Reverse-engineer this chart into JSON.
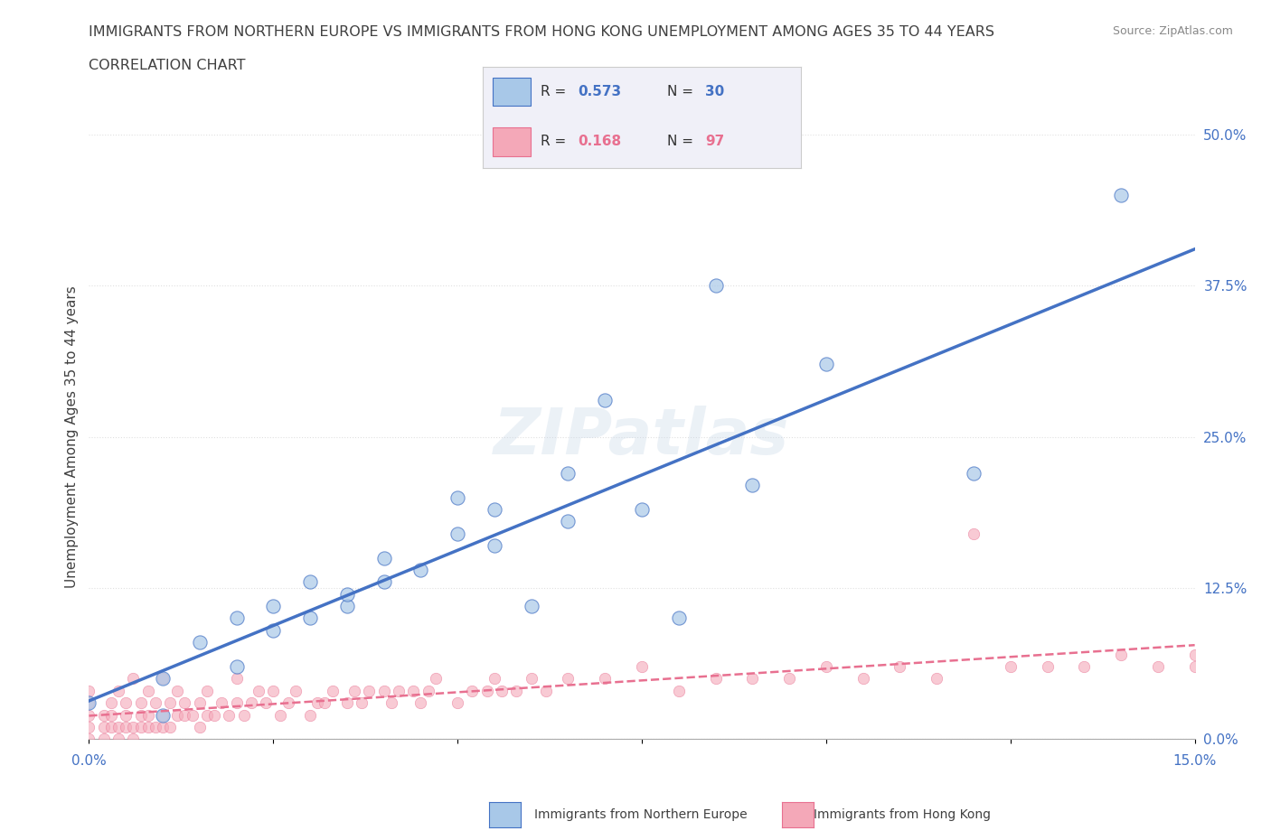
{
  "title_line1": "IMMIGRANTS FROM NORTHERN EUROPE VS IMMIGRANTS FROM HONG KONG UNEMPLOYMENT AMONG AGES 35 TO 44 YEARS",
  "title_line2": "CORRELATION CHART",
  "source_text": "Source: ZipAtlas.com",
  "xlabel": "",
  "ylabel": "Unemployment Among Ages 35 to 44 years",
  "xlim": [
    0.0,
    0.15
  ],
  "ylim": [
    0.0,
    0.5
  ],
  "xticks": [
    0.0,
    0.025,
    0.05,
    0.075,
    0.1,
    0.125,
    0.15
  ],
  "xtick_labels": [
    "0.0%",
    "",
    "",
    "",
    "",
    "",
    "15.0%"
  ],
  "ytick_labels_right": [
    "0.0%",
    "12.5%",
    "25.0%",
    "37.5%",
    "50.0%"
  ],
  "yticks_right": [
    0.0,
    0.125,
    0.25,
    0.375,
    0.5
  ],
  "R_blue": 0.573,
  "N_blue": 30,
  "R_pink": 0.168,
  "N_pink": 97,
  "blue_color": "#a8c8e8",
  "blue_line_color": "#4472c4",
  "pink_color": "#f4a8b8",
  "pink_line_color": "#e87090",
  "watermark": "ZIPatlas",
  "blue_scatter_x": [
    0.0,
    0.01,
    0.01,
    0.015,
    0.02,
    0.02,
    0.025,
    0.025,
    0.03,
    0.03,
    0.035,
    0.035,
    0.04,
    0.04,
    0.045,
    0.05,
    0.05,
    0.055,
    0.055,
    0.06,
    0.065,
    0.065,
    0.07,
    0.075,
    0.08,
    0.085,
    0.09,
    0.1,
    0.12,
    0.14
  ],
  "blue_scatter_y": [
    0.03,
    0.02,
    0.05,
    0.08,
    0.06,
    0.1,
    0.09,
    0.11,
    0.1,
    0.13,
    0.11,
    0.12,
    0.13,
    0.15,
    0.14,
    0.17,
    0.2,
    0.16,
    0.19,
    0.11,
    0.18,
    0.22,
    0.28,
    0.19,
    0.1,
    0.375,
    0.21,
    0.31,
    0.22,
    0.45
  ],
  "pink_scatter_x": [
    0.0,
    0.0,
    0.0,
    0.0,
    0.0,
    0.002,
    0.002,
    0.002,
    0.003,
    0.003,
    0.003,
    0.004,
    0.004,
    0.004,
    0.005,
    0.005,
    0.005,
    0.006,
    0.006,
    0.006,
    0.007,
    0.007,
    0.007,
    0.008,
    0.008,
    0.008,
    0.009,
    0.009,
    0.01,
    0.01,
    0.01,
    0.011,
    0.011,
    0.012,
    0.012,
    0.013,
    0.013,
    0.014,
    0.015,
    0.015,
    0.016,
    0.016,
    0.017,
    0.018,
    0.019,
    0.02,
    0.02,
    0.021,
    0.022,
    0.023,
    0.024,
    0.025,
    0.026,
    0.027,
    0.028,
    0.03,
    0.031,
    0.032,
    0.033,
    0.035,
    0.036,
    0.037,
    0.038,
    0.04,
    0.041,
    0.042,
    0.044,
    0.045,
    0.046,
    0.047,
    0.05,
    0.052,
    0.054,
    0.055,
    0.056,
    0.058,
    0.06,
    0.062,
    0.065,
    0.07,
    0.075,
    0.08,
    0.085,
    0.09,
    0.095,
    0.1,
    0.105,
    0.11,
    0.115,
    0.12,
    0.125,
    0.13,
    0.135,
    0.14,
    0.145,
    0.15,
    0.15
  ],
  "pink_scatter_y": [
    0.0,
    0.01,
    0.02,
    0.03,
    0.04,
    0.0,
    0.01,
    0.02,
    0.01,
    0.02,
    0.03,
    0.0,
    0.01,
    0.04,
    0.01,
    0.02,
    0.03,
    0.0,
    0.01,
    0.05,
    0.01,
    0.02,
    0.03,
    0.01,
    0.02,
    0.04,
    0.01,
    0.03,
    0.01,
    0.02,
    0.05,
    0.01,
    0.03,
    0.02,
    0.04,
    0.02,
    0.03,
    0.02,
    0.01,
    0.03,
    0.02,
    0.04,
    0.02,
    0.03,
    0.02,
    0.03,
    0.05,
    0.02,
    0.03,
    0.04,
    0.03,
    0.04,
    0.02,
    0.03,
    0.04,
    0.02,
    0.03,
    0.03,
    0.04,
    0.03,
    0.04,
    0.03,
    0.04,
    0.04,
    0.03,
    0.04,
    0.04,
    0.03,
    0.04,
    0.05,
    0.03,
    0.04,
    0.04,
    0.05,
    0.04,
    0.04,
    0.05,
    0.04,
    0.05,
    0.05,
    0.06,
    0.04,
    0.05,
    0.05,
    0.05,
    0.06,
    0.05,
    0.06,
    0.05,
    0.17,
    0.06,
    0.06,
    0.06,
    0.07,
    0.06,
    0.06,
    0.07
  ],
  "background_color": "#ffffff",
  "grid_color": "#e0e0e0",
  "title_color": "#404040",
  "axis_label_color": "#404040",
  "tick_color": "#4472c4",
  "legend_box_color": "#f0f0f8"
}
